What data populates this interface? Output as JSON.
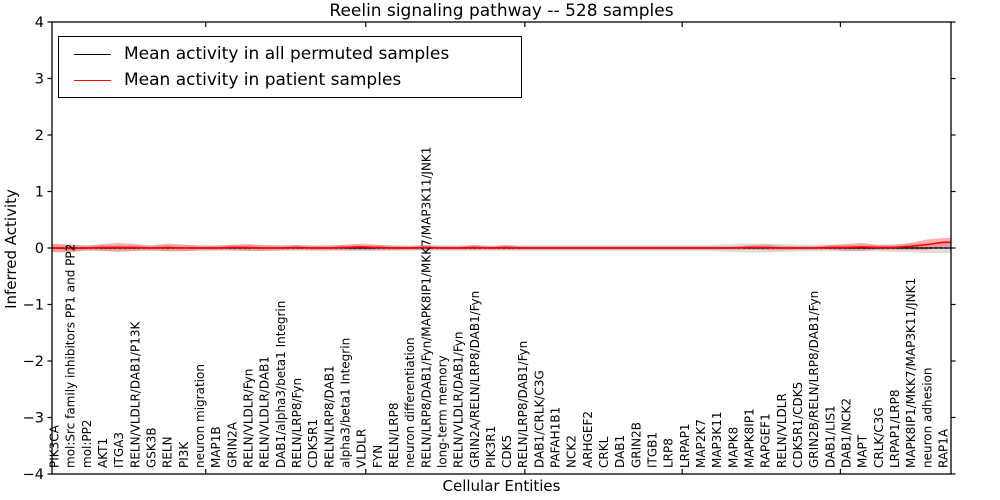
{
  "chart_data": {
    "type": "line",
    "title": "Reelin signaling pathway -- 528 samples",
    "xlabel": "Cellular Entities",
    "ylabel": "Inferred Activity",
    "ylim": [
      -4,
      4
    ],
    "yticks": [
      4,
      3,
      2,
      1,
      0,
      -1,
      -2,
      -3,
      -4
    ],
    "grid": false,
    "legend_position": "upper left",
    "zero_line_style": "dotted",
    "categories": [
      "PIK3CA",
      "mol:Src family inhibitors PP1 and PP2",
      "mol:PP2",
      "AKT1",
      "ITGA3",
      "RELN/VLDLR/DAB1/P13K",
      "GSK3B",
      "RELN",
      "PI3K",
      "neuron migration",
      "MAP1B",
      "GRIN2A",
      "RELN/VLDLR/Fyn",
      "RELN/VLDLR/DAB1",
      "DAB1/alpha3/beta1 Integrin",
      "RELN/LRP8/Fyn",
      "CDK5R1",
      "RELN/LRP8/DAB1",
      "alpha3/beta1 Integrin",
      "VLDLR",
      "FYN",
      "RELN/LRP8",
      "neuron differentiation",
      "RELN/LRP8/DAB1/Fyn/MAPK8IP1/MKK7/MAP3K11/JNK1",
      "long-term memory",
      "RELN/VLDLR/DAB1/Fyn",
      "GRIN2A/RELN/LRP8/DAB1/Fyn",
      "PIK3R1",
      "CDK5",
      "RELN/LRP8/DAB1/Fyn",
      "DAB1/CRLK/C3G",
      "PAFAH1B1",
      "NCK2",
      "ARHGEF2",
      "CRKL",
      "DAB1",
      "GRIN2B",
      "ITGB1",
      "LRP8",
      "LRPAP1",
      "MAP2K7",
      "MAP3K11",
      "MAPK8",
      "MAPK8IP1",
      "RAPGEF1",
      "RELN/VLDLR",
      "CDK5R1/CDK5",
      "GRIN2B/RELN/LRP8/DAB1/Fyn",
      "DAB1/LIS1",
      "DAB1/NCK2",
      "MAPT",
      "CRLK/C3G",
      "LRPAP1/LRP8",
      "MAPK8IP1/MKK7/MAP3K11/JNK1",
      "neuron adhesion",
      "RAP1A"
    ],
    "series": [
      {
        "name": "Mean activity in all permuted samples",
        "color": "#000000",
        "line_width": 1.2,
        "band_color": "#000000",
        "band_opacity": 0.13,
        "values": [
          0,
          0,
          0,
          0,
          0,
          0,
          0,
          0,
          0,
          0,
          0,
          0,
          0,
          0,
          0,
          0,
          0,
          0,
          0,
          0,
          0,
          0,
          0,
          0,
          0,
          0,
          0,
          0,
          0,
          0,
          0,
          0,
          0,
          0,
          0,
          0,
          0,
          0,
          0,
          0,
          0,
          0,
          0,
          0,
          0,
          0,
          0,
          0,
          0,
          0,
          0,
          0,
          0,
          0,
          0,
          0
        ],
        "band_halfwidth": [
          0.06,
          0.06,
          0.05,
          0.05,
          0.05,
          0.05,
          0.05,
          0.05,
          0.05,
          0.05,
          0.05,
          0.05,
          0.05,
          0.05,
          0.05,
          0.05,
          0.05,
          0.05,
          0.05,
          0.05,
          0.05,
          0.05,
          0.05,
          0.05,
          0.05,
          0.05,
          0.05,
          0.05,
          0.05,
          0.05,
          0.05,
          0.05,
          0.05,
          0.05,
          0.05,
          0.05,
          0.05,
          0.05,
          0.05,
          0.05,
          0.05,
          0.06,
          0.07,
          0.08,
          0.08,
          0.07,
          0.06,
          0.06,
          0.06,
          0.06,
          0.06,
          0.06,
          0.07,
          0.08,
          0.09,
          0.09
        ]
      },
      {
        "name": "Mean activity in patient samples",
        "color": "#ff0000",
        "line_width": 1.6,
        "band_color": "#ff0000",
        "band_opacity": 0.3,
        "values": [
          0.0,
          -0.01,
          0.0,
          0.01,
          0.01,
          0.01,
          0.0,
          0.01,
          0.0,
          0.0,
          0.0,
          0.01,
          0.01,
          0.0,
          0.0,
          0.01,
          0.0,
          0.0,
          0.01,
          0.02,
          0.01,
          0.0,
          0.0,
          0.01,
          0.0,
          0.0,
          0.01,
          0.0,
          0.01,
          0.0,
          0.0,
          0.0,
          0.0,
          0.0,
          0.0,
          0.0,
          0.0,
          0.0,
          0.0,
          0.0,
          0.0,
          0.0,
          0.0,
          0.01,
          0.01,
          0.0,
          0.0,
          0.0,
          0.01,
          0.01,
          0.02,
          0.01,
          0.01,
          0.03,
          0.06,
          0.1
        ],
        "band_halfwidth": [
          0.08,
          0.07,
          0.04,
          0.06,
          0.08,
          0.06,
          0.04,
          0.07,
          0.06,
          0.04,
          0.04,
          0.05,
          0.06,
          0.05,
          0.04,
          0.04,
          0.04,
          0.04,
          0.05,
          0.06,
          0.05,
          0.04,
          0.03,
          0.04,
          0.03,
          0.03,
          0.04,
          0.03,
          0.04,
          0.03,
          0.03,
          0.03,
          0.03,
          0.03,
          0.03,
          0.03,
          0.03,
          0.03,
          0.03,
          0.03,
          0.03,
          0.03,
          0.03,
          0.04,
          0.05,
          0.04,
          0.03,
          0.03,
          0.04,
          0.06,
          0.07,
          0.04,
          0.04,
          0.06,
          0.09,
          0.08
        ]
      }
    ]
  }
}
